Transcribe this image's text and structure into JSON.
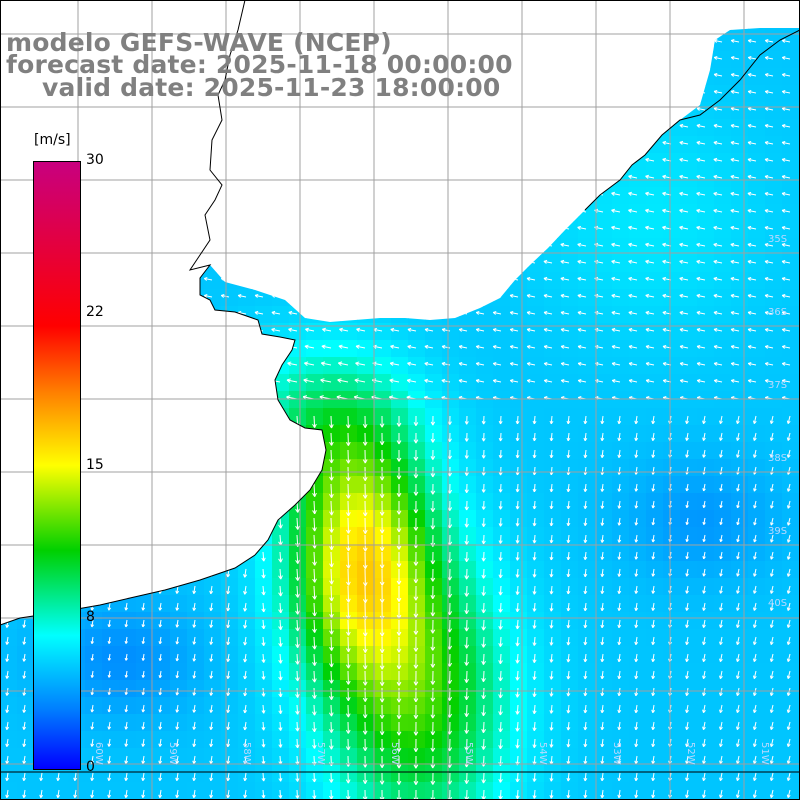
{
  "title": {
    "model": "modelo GEFS-WAVE (NCEP)",
    "forecast": "forecast date: 2025-11-18 00:00:00",
    "valid": "valid date: 2025-11-23 18:00:00"
  },
  "colorbar": {
    "unit": "[m/s]",
    "ticks": [
      "30",
      "22",
      "15",
      "8",
      "0"
    ],
    "tick_values": [
      30,
      22,
      15,
      8,
      0
    ],
    "range": [
      0,
      30
    ],
    "colors": [
      "#0000ff",
      "#0080ff",
      "#00ffff",
      "#00d000",
      "#ffff00",
      "#ff8000",
      "#ff0000",
      "#c8007f"
    ]
  },
  "map": {
    "lat_labels": [
      "35S",
      "36S",
      "37S",
      "38S",
      "39S",
      "40S"
    ],
    "lon_labels": [
      "60W",
      "59W",
      "58W",
      "57W",
      "56W",
      "55W",
      "54W",
      "53W",
      "52W",
      "51W"
    ],
    "land_color": "#ffffff",
    "grid_color": "#a0a0a0"
  }
}
